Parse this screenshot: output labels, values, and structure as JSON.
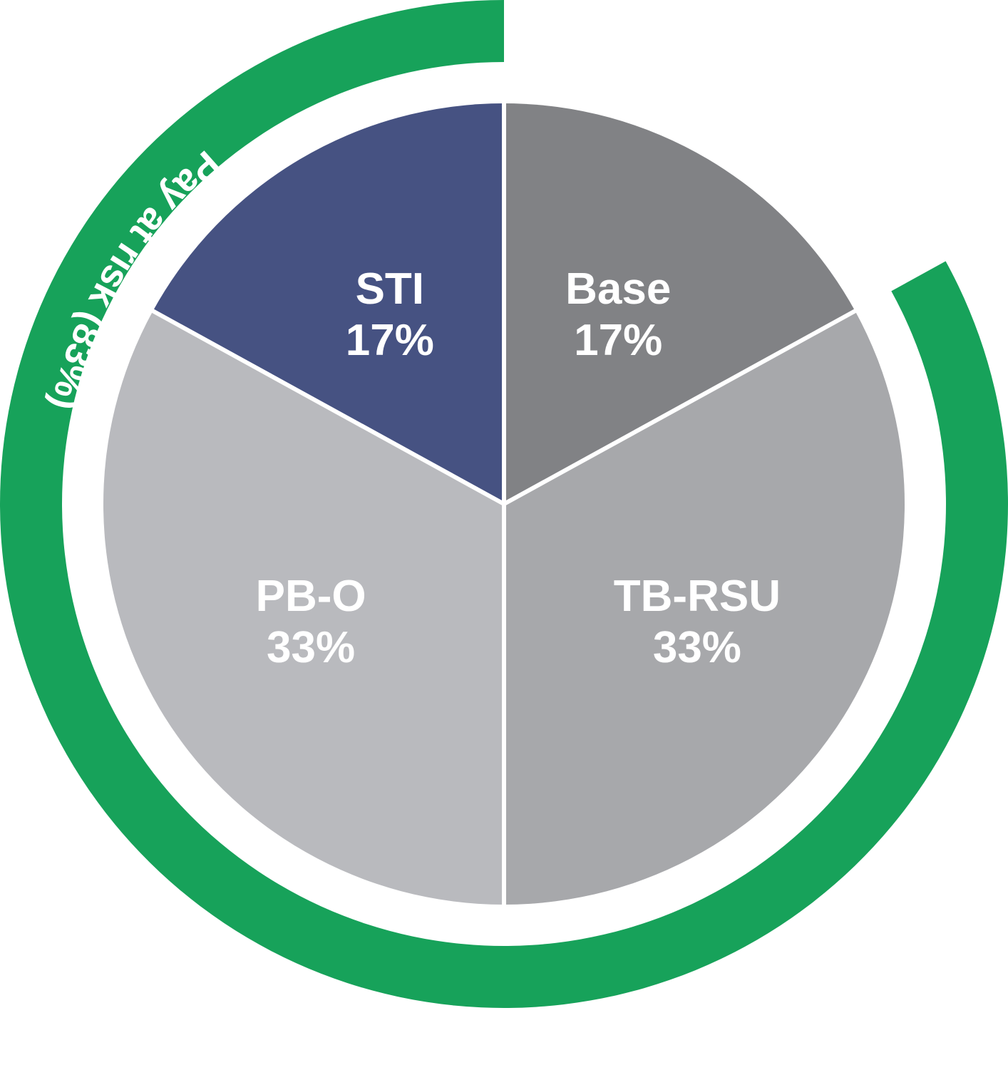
{
  "chart_data": {
    "type": "pie",
    "slices": [
      {
        "label": "Base",
        "value": 17,
        "value_label": "17%",
        "color": "#818285",
        "text_color": "#ffffff"
      },
      {
        "label": "TB-RSU",
        "value": 33,
        "value_label": "33%",
        "color": "#a7a8ab",
        "text_color": "#ffffff"
      },
      {
        "label": "PB-O",
        "value": 33,
        "value_label": "33%",
        "color": "#b9babe",
        "text_color": "#ffffff"
      },
      {
        "label": "STI",
        "value": 17,
        "value_label": "17%",
        "color": "#465282",
        "text_color": "#ffffff"
      }
    ],
    "ring": {
      "label": "Pay at risk (83%)",
      "value": 83,
      "color": "#17a25a"
    }
  }
}
